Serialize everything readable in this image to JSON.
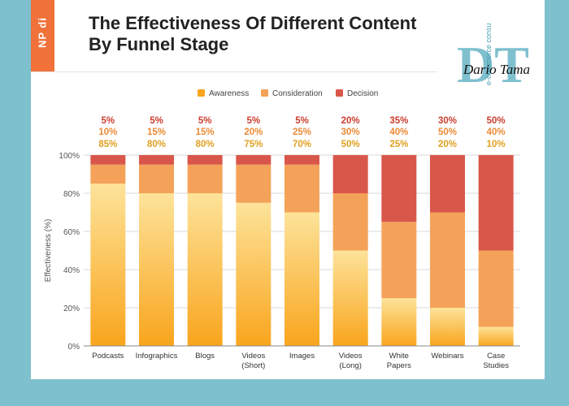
{
  "header": {
    "brand": "NP di",
    "title": "The Effectiveness Of Different Content\nBy Funnel Stage"
  },
  "watermark": {
    "monogram": "DT",
    "signature": "Dario Tama",
    "tagline": "e-commerce consulting"
  },
  "colors": {
    "awareness_top": "#fde39a",
    "awareness_bottom": "#f9a51d",
    "consideration": "#f4a259",
    "decision": "#d9574a",
    "awareness_label": "#e0a020",
    "consideration_label": "#ec8a35",
    "decision_label": "#cc3d2e",
    "background": "#7fc0cf"
  },
  "chart_data": {
    "type": "bar",
    "stacked": true,
    "categories": [
      "Podcasts",
      "Infographics",
      "Blogs",
      "Videos\n(Short)",
      "Images",
      "Videos\n(Long)",
      "White\nPapers",
      "Webinars",
      "Case\nStudies"
    ],
    "series": [
      {
        "name": "Awareness",
        "values": [
          85,
          80,
          80,
          75,
          70,
          50,
          25,
          20,
          10
        ]
      },
      {
        "name": "Consideration",
        "values": [
          10,
          15,
          15,
          20,
          25,
          30,
          40,
          50,
          40
        ]
      },
      {
        "name": "Decision",
        "values": [
          5,
          5,
          5,
          5,
          5,
          20,
          35,
          30,
          50
        ]
      }
    ],
    "ylabel": "Effectiveness (%)",
    "yticks": [
      "0%",
      "20%",
      "40%",
      "60%",
      "80%",
      "100%"
    ],
    "ylim": [
      0,
      100
    ],
    "grid": true,
    "legend": "top-center"
  }
}
